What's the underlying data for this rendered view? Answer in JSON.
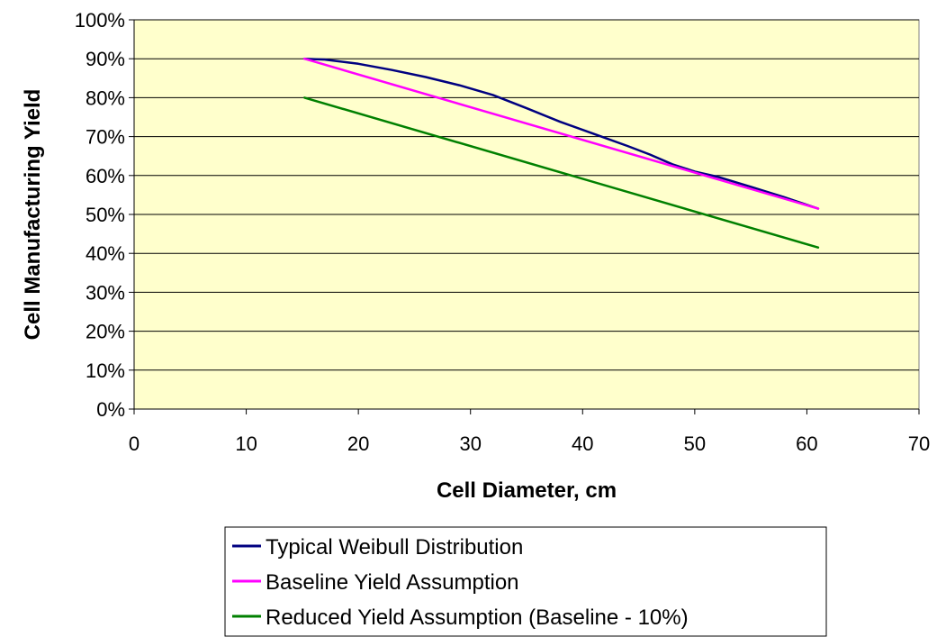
{
  "chart_data": {
    "type": "line",
    "title": "",
    "xlabel": "Cell Diameter, cm",
    "ylabel": "Cell Manufacturing Yield",
    "xlim": [
      0,
      70
    ],
    "ylim": [
      0,
      100
    ],
    "x_ticks": [
      "0",
      "10",
      "20",
      "30",
      "40",
      "50",
      "60",
      "70"
    ],
    "y_ticks": [
      "0%",
      "10%",
      "20%",
      "30%",
      "40%",
      "50%",
      "60%",
      "70%",
      "80%",
      "90%",
      "100%"
    ],
    "y_unit": "%",
    "grid": "horizontal",
    "plot_background": "#ffffcc",
    "legend_position": "bottom",
    "series": [
      {
        "name": "Typical Weibull Distribution",
        "color": "#000080",
        "x": [
          15.2,
          17,
          20,
          23,
          26,
          29,
          32,
          35,
          38,
          41,
          44,
          46,
          48,
          50,
          52,
          55,
          58,
          61
        ],
        "y": [
          90,
          89.8,
          88.7,
          87.1,
          85.3,
          83.2,
          80.7,
          77.3,
          73.8,
          70.7,
          67.6,
          65.4,
          62.9,
          61,
          59.7,
          57.1,
          54.4,
          51.5
        ]
      },
      {
        "name": "Baseline Yield Assumption",
        "color": "#ff00ff",
        "x": [
          15.2,
          61
        ],
        "y": [
          90,
          51.5
        ]
      },
      {
        "name": "Reduced Yield Assumption (Baseline - 10%)",
        "color": "#008000",
        "x": [
          15.2,
          61
        ],
        "y": [
          80,
          41.5
        ]
      }
    ]
  }
}
